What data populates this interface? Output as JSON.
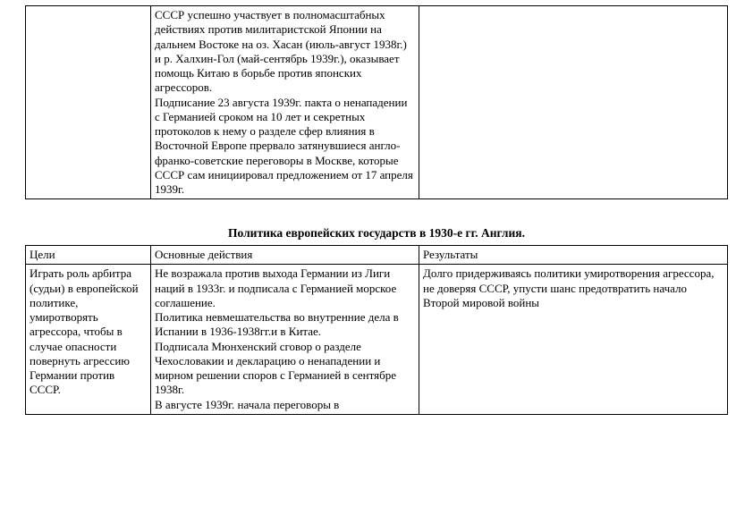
{
  "topTable": {
    "rows": [
      {
        "c1": "",
        "c2_paras": [
          "СССР успешно участвует в полномасштабных действиях против милитаристской Японии на дальнем Востоке на оз. Хасан (июль-август 1938г.) и р. Халхин-Гол (май-сентябрь 1939г.), оказывает помощь Китаю в борьбе против японских агрессоров.",
          "Подписание 23 августа 1939г.  пакта о ненападении с Германией сроком на 10 лет и секретных протоколов к нему о разделе сфер влияния в Восточной Европе прервало затянувшиеся  англо-франко-советские переговоры  в Москве, которые СССР сам инициировал предложением от 17 апреля 1939г."
        ],
        "c3": ""
      }
    ]
  },
  "sectionTitle": "Политика европейских государств в 1930-е гг. Англия.",
  "bottomTable": {
    "header": {
      "c1": "Цели",
      "c2": "Основные действия",
      "c3": "Результаты"
    },
    "row": {
      "c1": "Играть роль арбитра (судьи) в европейской политике, умиротворять агрессора, чтобы   в случае опасности повернуть агрессию Германии против СССР.",
      "c2_paras": [
        "Не возражала против выхода Германии из Лиги наций в 1933г. и подписала с Германией морское соглашение.",
        "Политика невмешательства во внутренние дела в Испании в 1936-1938гг.и в Китае.",
        "Подписала Мюнхенский сговор о разделе Чехословакии  и декларацию о ненападении и мирном решении споров с Германией в сентябре 1938г.",
        "В августе 1939г. начала переговоры в"
      ],
      "c3": "Долго придерживаясь политики умиротворения агрессора, не доверяя СССР, упусти шанс предотвратить начало Второй мировой войны"
    }
  },
  "style": {
    "colWidths": {
      "c1": 140,
      "c2": 300
    },
    "fontFamily": "Times New Roman",
    "fontSizePt": 13,
    "borderColor": "#000000",
    "background": "#ffffff"
  }
}
